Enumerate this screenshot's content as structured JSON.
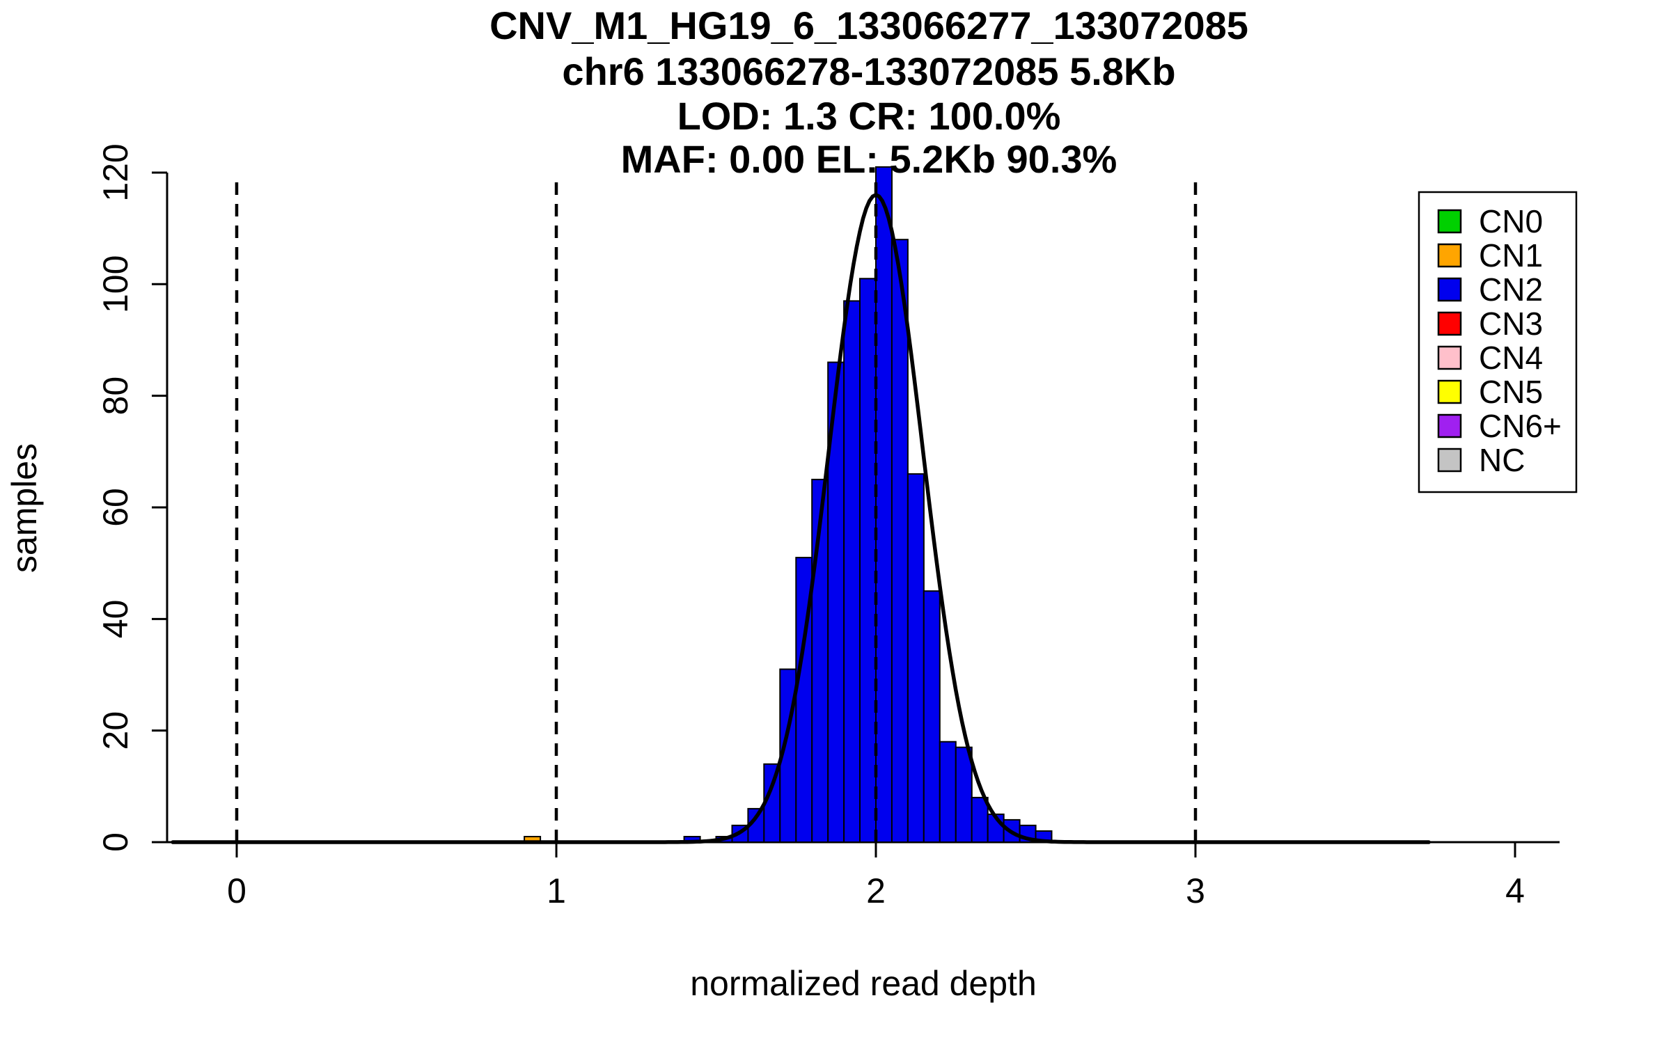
{
  "figure": {
    "title_lines": [
      "CNV_M1_HG19_6_133066277_133072085",
      "chr6 133066278-133072085 5.8Kb",
      "LOD: 1.3 CR: 100.0%",
      "MAF: 0.00 EL: 5.2Kb 90.3%"
    ],
    "xlabel": "normalized read depth",
    "ylabel": "samples"
  },
  "chart_data": {
    "type": "bar",
    "title": "CNV_M1_HG19_6_133066277_133072085 | chr6 133066278-133072085 5.8Kb | LOD: 1.3 CR: 100.0% | MAF: 0.00 EL: 5.2Kb 90.3%",
    "xlabel": "normalized read depth",
    "ylabel": "samples",
    "xlim": [
      -0.22,
      4.15
    ],
    "ylim": [
      0,
      121
    ],
    "x_ticks": [
      0,
      1,
      2,
      3,
      4
    ],
    "y_ticks": [
      0,
      20,
      40,
      60,
      80,
      100,
      120
    ],
    "grid": false,
    "legend_position": "top-right",
    "bin_width": 0.05,
    "bars": [
      {
        "x": 0.9,
        "h": 1,
        "cn": "CN1"
      },
      {
        "x": 1.4,
        "h": 1,
        "cn": "CN2"
      },
      {
        "x": 1.5,
        "h": 1,
        "cn": "CN2"
      },
      {
        "x": 1.55,
        "h": 3,
        "cn": "CN2"
      },
      {
        "x": 1.6,
        "h": 6,
        "cn": "CN2"
      },
      {
        "x": 1.65,
        "h": 14,
        "cn": "CN2"
      },
      {
        "x": 1.7,
        "h": 31,
        "cn": "CN2"
      },
      {
        "x": 1.75,
        "h": 51,
        "cn": "CN2"
      },
      {
        "x": 1.8,
        "h": 65,
        "cn": "CN2"
      },
      {
        "x": 1.85,
        "h": 86,
        "cn": "CN2"
      },
      {
        "x": 1.9,
        "h": 97,
        "cn": "CN2"
      },
      {
        "x": 1.95,
        "h": 101,
        "cn": "CN2"
      },
      {
        "x": 2.0,
        "h": 121,
        "cn": "CN2"
      },
      {
        "x": 2.05,
        "h": 108,
        "cn": "CN2"
      },
      {
        "x": 2.1,
        "h": 66,
        "cn": "CN2"
      },
      {
        "x": 2.15,
        "h": 45,
        "cn": "CN2"
      },
      {
        "x": 2.2,
        "h": 18,
        "cn": "CN2"
      },
      {
        "x": 2.25,
        "h": 17,
        "cn": "CN2"
      },
      {
        "x": 2.3,
        "h": 8,
        "cn": "CN2"
      },
      {
        "x": 2.35,
        "h": 5,
        "cn": "CN2"
      },
      {
        "x": 2.4,
        "h": 4,
        "cn": "CN2"
      },
      {
        "x": 2.45,
        "h": 3,
        "cn": "CN2"
      },
      {
        "x": 2.5,
        "h": 2,
        "cn": "CN2"
      }
    ],
    "curve": {
      "type": "gaussian",
      "mean": 2.0,
      "sd": 0.147,
      "peak": 116,
      "x_start": -0.2,
      "x_end": 3.73
    },
    "dashed_lines_x": [
      0,
      1,
      2,
      3
    ],
    "colors": {
      "CN0": "#00D000",
      "CN1": "#FFA500",
      "CN2": "#0000EE",
      "CN3": "#FF0000",
      "CN4": "#FFC0CB",
      "CN5": "#FFFF00",
      "CN6+": "#A020F0",
      "NC": "#C4C4C4"
    }
  },
  "legend": {
    "entries": [
      {
        "label": "CN0",
        "color": "#00D000"
      },
      {
        "label": "CN1",
        "color": "#FFA500"
      },
      {
        "label": "CN2",
        "color": "#0000EE"
      },
      {
        "label": "CN3",
        "color": "#FF0000"
      },
      {
        "label": "CN4",
        "color": "#FFC0CB"
      },
      {
        "label": "CN5",
        "color": "#FFFF00"
      },
      {
        "label": "CN6+",
        "color": "#A020F0"
      },
      {
        "label": "NC",
        "color": "#C4C4C4"
      }
    ]
  }
}
